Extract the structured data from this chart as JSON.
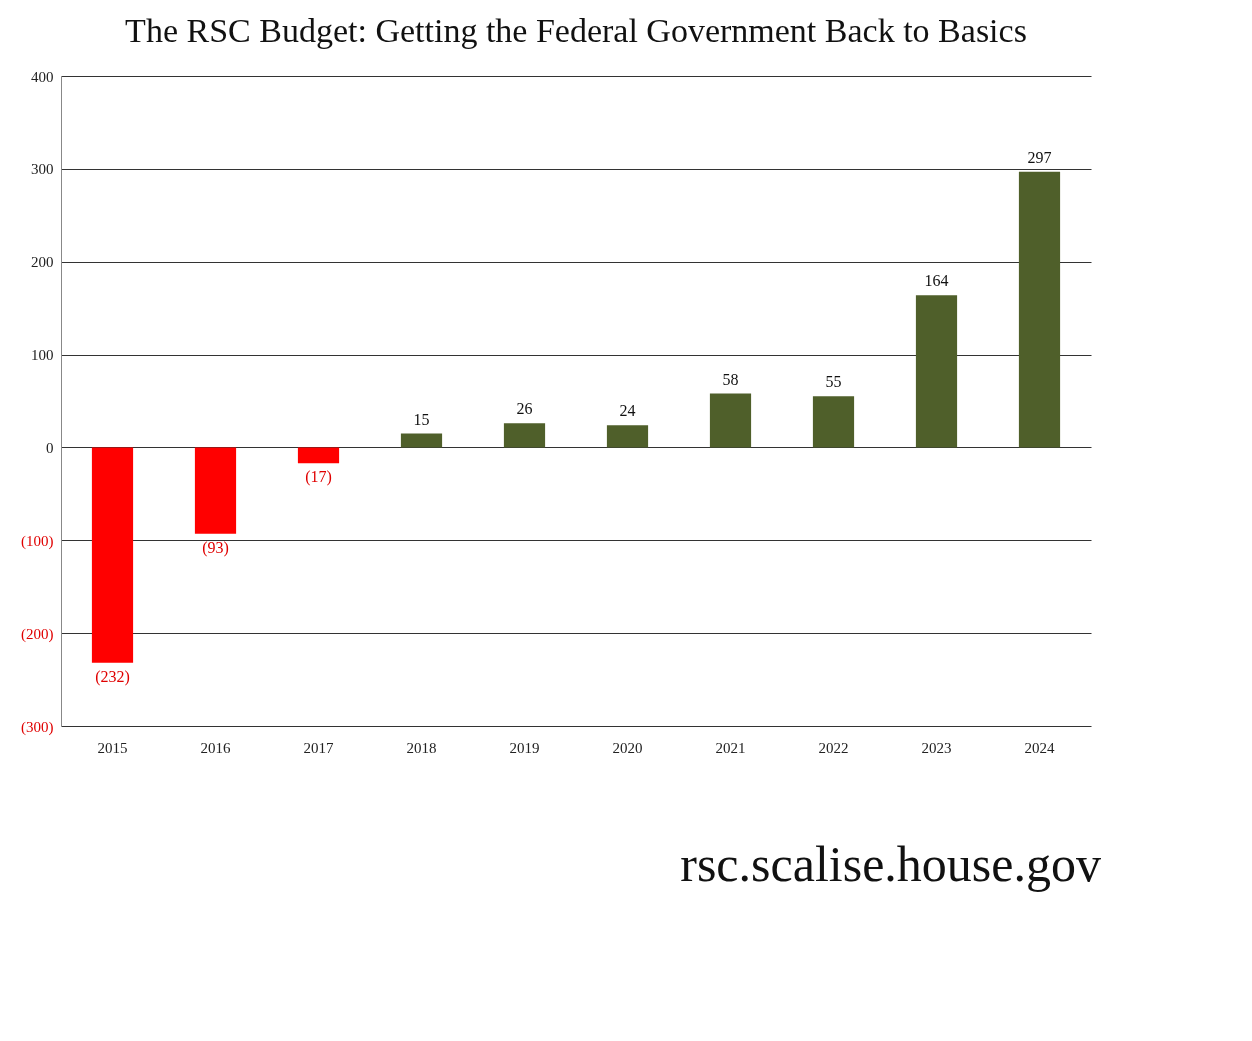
{
  "chart_data": {
    "type": "bar",
    "title": "The RSC Budget: Getting the Federal Government Back to Basics",
    "categories": [
      "2015",
      "2016",
      "2017",
      "2018",
      "2019",
      "2020",
      "2021",
      "2022",
      "2023",
      "2024"
    ],
    "values": [
      -232,
      -93,
      -17,
      15,
      26,
      24,
      58,
      55,
      164,
      297
    ],
    "colors": [
      "#ff0000",
      "#ff0000",
      "#ff0000",
      "#4f5f2a",
      "#4f5f2a",
      "#4f5f2a",
      "#4f5f2a",
      "#4f5f2a",
      "#4f5f2a",
      "#4f5f2a"
    ],
    "value_labels": [
      "(232)",
      "(93)",
      "(17)",
      "15",
      "26",
      "24",
      "58",
      "55",
      "164",
      "297"
    ],
    "ylim": [
      -300,
      400
    ],
    "yticks": [
      {
        "value": -300,
        "label": "(300)"
      },
      {
        "value": -200,
        "label": "(200)"
      },
      {
        "value": -100,
        "label": "(100)"
      },
      0,
      100,
      200,
      300,
      400
    ],
    "grid": "y",
    "annotations": [
      "rsc.scalise.house.gov"
    ]
  }
}
